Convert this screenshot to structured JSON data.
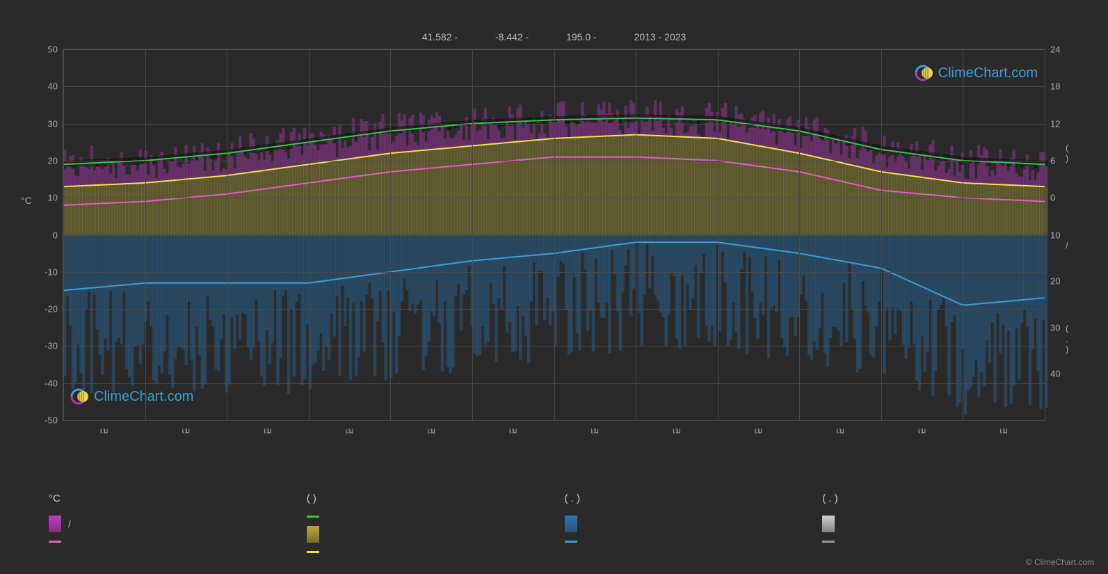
{
  "header": {
    "lat": "41.582 -",
    "lon": "-8.442 -",
    "elev": "195.0 -",
    "years": "2013 - 2023"
  },
  "brand": {
    "name": "ClimeChart.com",
    "color": "#3b9fd9",
    "icon_ring_color": "#c030c0",
    "icon_sun_color": "#e8d848"
  },
  "copyright": "© ClimeChart.com",
  "background_color": "#2a2a2a",
  "grid_color": "#4a4a4a",
  "text_color": "#aaa",
  "chart": {
    "type": "climate-chart",
    "left_axis": {
      "label": "°C",
      "min": -50,
      "max": 50,
      "ticks": [
        50,
        40,
        30,
        20,
        10,
        0,
        -10,
        -20,
        -30,
        -40,
        -50
      ]
    },
    "right_axis": {
      "label_top": "(    )",
      "label_mid": "/",
      "label_bot": "(  . )",
      "ticks": [
        24,
        18,
        12,
        6,
        0,
        10,
        20,
        30,
        40
      ]
    },
    "x_ticks": [
      "เม",
      "เม",
      "เม",
      "เม",
      "เม",
      "เม",
      "เม",
      "เม",
      "เม",
      "เม",
      "เม",
      "เม"
    ],
    "series": {
      "temp_max_line": {
        "color": "#2ecc40",
        "width": 2,
        "data": [
          19,
          20,
          22,
          25,
          28,
          30,
          31,
          31.5,
          31,
          28,
          23,
          20,
          19
        ]
      },
      "temp_avg_line": {
        "color": "#f5e050",
        "width": 2,
        "data": [
          13,
          14,
          16,
          19,
          22,
          24,
          26,
          27,
          26,
          22,
          17,
          14,
          13
        ]
      },
      "temp_min_line": {
        "color": "#e85cc8",
        "width": 2,
        "data": [
          8,
          9,
          11,
          14,
          17,
          19,
          21,
          21,
          20,
          17,
          12,
          10,
          9
        ]
      },
      "precip_line": {
        "color": "#3b9fd9",
        "width": 2,
        "data": [
          -15,
          -13,
          -13,
          -13,
          -10,
          -7,
          -5,
          -2,
          -2,
          -5,
          -9,
          -19,
          -17
        ]
      },
      "bars_temp_color_top": "#c838c8",
      "bars_temp_color_mid": "#b8a838",
      "bars_temp_alpha": 0.35,
      "bars_precip_color": "#2878b8",
      "bars_precip_alpha": 0.35,
      "bars_cloud_color": "#d0d0d0"
    }
  },
  "legend": {
    "col1": {
      "header": "°C",
      "items": [
        {
          "type": "box",
          "color": "#c838c8",
          "label": "/"
        },
        {
          "type": "line",
          "color": "#e85cc8",
          "label": ""
        }
      ]
    },
    "col2": {
      "header": "(        )",
      "items": [
        {
          "type": "line",
          "color": "#2ecc40",
          "label": ""
        },
        {
          "type": "box",
          "color": "#b8a838",
          "label": ""
        },
        {
          "type": "line",
          "color": "#f5e050",
          "label": ""
        }
      ]
    },
    "col3": {
      "header": "(  . )",
      "items": [
        {
          "type": "box",
          "color": "#2878b8",
          "label": ""
        },
        {
          "type": "line",
          "color": "#3b9fd9",
          "label": ""
        }
      ]
    },
    "col4": {
      "header": "(  . )",
      "items": [
        {
          "type": "box",
          "color": "#d0d0d0",
          "label": ""
        },
        {
          "type": "line",
          "color": "#999",
          "label": ""
        }
      ]
    }
  }
}
